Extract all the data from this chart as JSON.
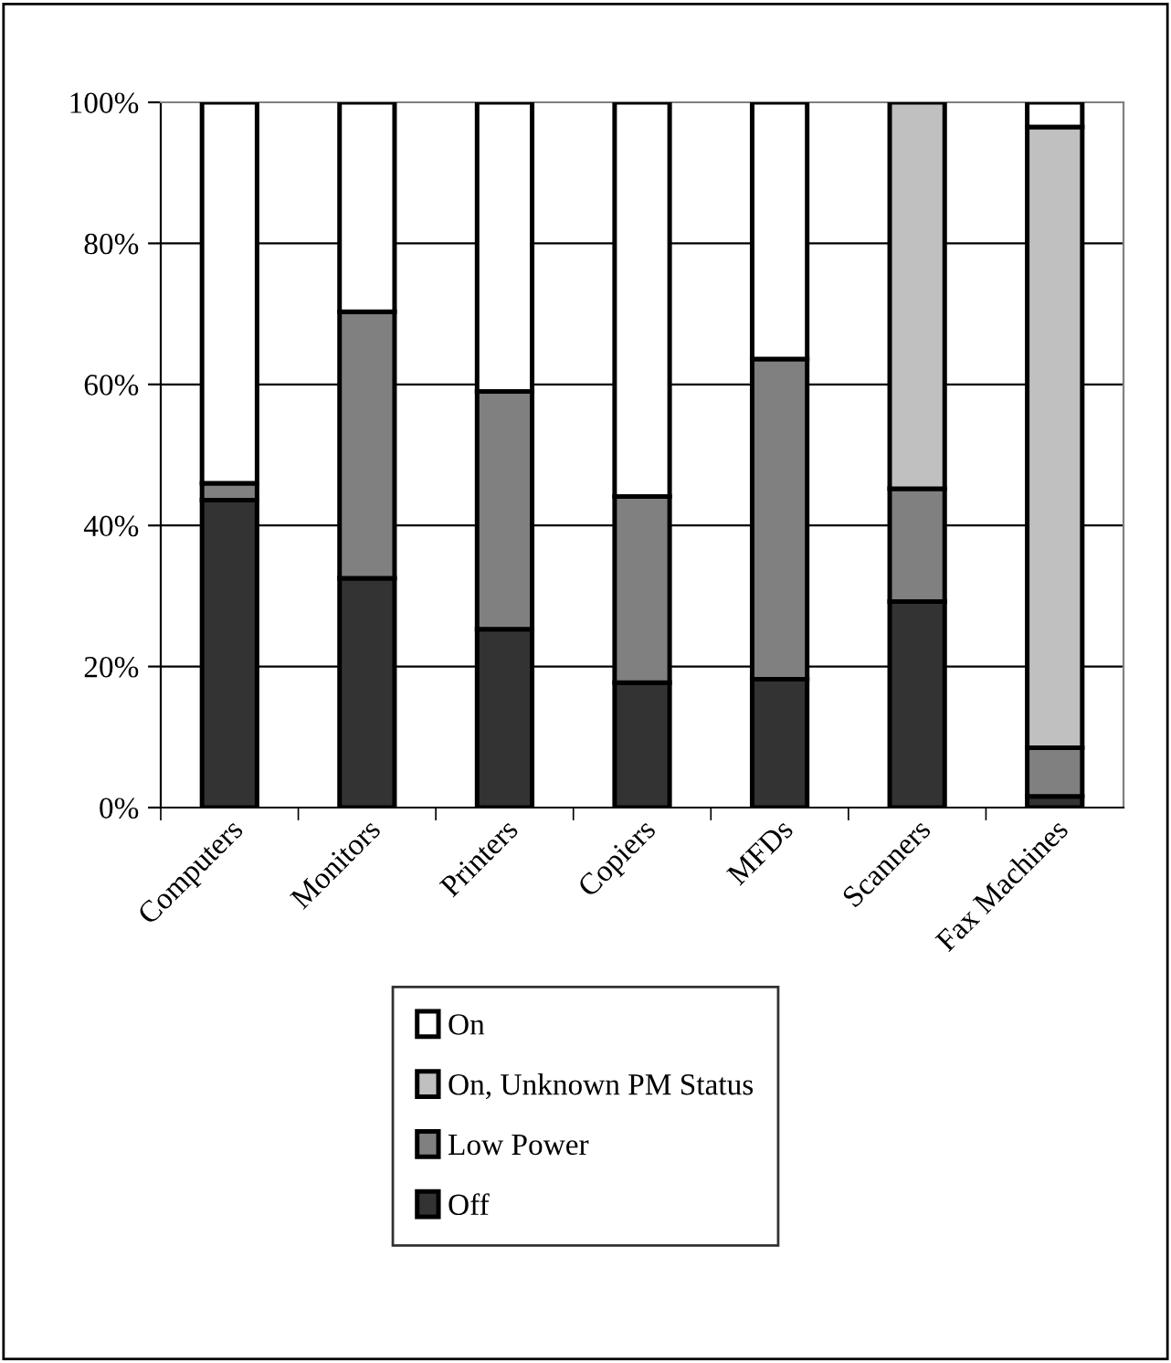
{
  "chart_data": {
    "type": "bar",
    "stacked": true,
    "categories": [
      "Computers",
      "Monitors",
      "Printers",
      "Copiers",
      "MFDs",
      "Scanners",
      "Fax Machines"
    ],
    "series": [
      {
        "name": "Off",
        "color": "#333333",
        "values": [
          43.6,
          32.5,
          25.3,
          17.7,
          18.2,
          29.2,
          1.6
        ]
      },
      {
        "name": "Low Power",
        "color": "#808080",
        "values": [
          2.4,
          37.8,
          33.7,
          26.4,
          45.4,
          16.0,
          6.9
        ]
      },
      {
        "name": "On, Unknown PM Status",
        "color": "#c0c0c0",
        "values": [
          null,
          null,
          null,
          null,
          null,
          54.8,
          88.0
        ]
      },
      {
        "name": "On",
        "color": "#ffffff",
        "values": [
          54.0,
          29.7,
          41.0,
          55.9,
          36.4,
          null,
          3.5
        ]
      }
    ],
    "ylim": [
      0,
      100
    ],
    "yticks": [
      {
        "value": 0,
        "label": "0%"
      },
      {
        "value": 20,
        "label": "20%"
      },
      {
        "value": 40,
        "label": "40%"
      },
      {
        "value": 60,
        "label": "60%"
      },
      {
        "value": 80,
        "label": "80%"
      },
      {
        "value": 100,
        "label": "100%"
      }
    ],
    "grid": "y",
    "legend": "bottom"
  }
}
